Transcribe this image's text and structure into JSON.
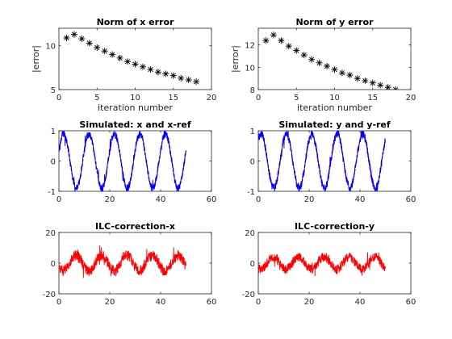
{
  "chart_data": [
    {
      "id": "p1",
      "type": "scatter",
      "title": "Norm of x error",
      "xlabel": "iteration number",
      "ylabel": "|error|",
      "xlim": [
        0,
        20
      ],
      "ylim": [
        5,
        12
      ],
      "xticks": [
        0,
        5,
        10,
        15,
        20
      ],
      "yticks": [
        5,
        10
      ],
      "xtick_labels": [
        "0",
        "5",
        "10",
        "15",
        "20"
      ],
      "ytick_labels": [
        "5",
        "10"
      ],
      "marker": "*",
      "color": "#000000",
      "series": [
        {
          "x": [
            1,
            2,
            3,
            4,
            5,
            6,
            7,
            8,
            9,
            10,
            11,
            12,
            13,
            14,
            15,
            16,
            17,
            18
          ],
          "y": [
            10.9,
            11.3,
            10.8,
            10.3,
            9.8,
            9.4,
            9.0,
            8.6,
            8.2,
            7.9,
            7.6,
            7.3,
            7.0,
            6.8,
            6.6,
            6.3,
            6.1,
            5.9
          ]
        }
      ]
    },
    {
      "id": "p2",
      "type": "scatter",
      "title": "Norm of y error",
      "xlabel": "iteration number",
      "ylabel": "|error|",
      "xlim": [
        0,
        20
      ],
      "ylim": [
        8,
        13.5
      ],
      "xticks": [
        0,
        5,
        10,
        15,
        20
      ],
      "yticks": [
        8,
        10,
        12
      ],
      "xtick_labels": [
        "0",
        "5",
        "10",
        "15",
        "20"
      ],
      "ytick_labels": [
        "8",
        "10",
        "12"
      ],
      "marker": "*",
      "color": "#000000",
      "series": [
        {
          "x": [
            1,
            2,
            3,
            4,
            5,
            6,
            7,
            8,
            9,
            10,
            11,
            12,
            13,
            14,
            15,
            16,
            17,
            18
          ],
          "y": [
            12.4,
            12.9,
            12.4,
            11.9,
            11.5,
            11.1,
            10.7,
            10.4,
            10.1,
            9.8,
            9.5,
            9.3,
            9.0,
            8.8,
            8.6,
            8.4,
            8.2,
            8.0
          ]
        }
      ]
    },
    {
      "id": "p3",
      "type": "line",
      "title": "Simulated: x and x-ref",
      "xlabel": "",
      "ylabel": "",
      "xlim": [
        0,
        60
      ],
      "ylim": [
        -1,
        1
      ],
      "xticks": [
        0,
        20,
        40,
        60
      ],
      "yticks": [
        -1,
        0,
        1
      ],
      "xtick_labels": [
        "0",
        "20",
        "40",
        "60"
      ],
      "ytick_labels": [
        "-1",
        "0",
        "1"
      ],
      "series": [
        {
          "kind": "sine",
          "t0": 0,
          "t1": 50,
          "amplitude": 0.9,
          "period": 10,
          "phase": 0.4,
          "noise": 0.0,
          "color": "#ff0000",
          "dashed": true
        },
        {
          "kind": "sine",
          "t0": 0,
          "t1": 50,
          "amplitude": 0.9,
          "period": 10,
          "phase": 0.4,
          "noise": 0.13,
          "color": "#0000ff",
          "dashed": false
        }
      ]
    },
    {
      "id": "p4",
      "type": "line",
      "title": "Simulated: y and y-ref",
      "xlabel": "",
      "ylabel": "",
      "xlim": [
        0,
        60
      ],
      "ylim": [
        -1,
        1
      ],
      "xticks": [
        0,
        20,
        40,
        60
      ],
      "yticks": [
        -1,
        0,
        1
      ],
      "xtick_labels": [
        "0",
        "20",
        "40",
        "60"
      ],
      "ytick_labels": [
        "-1",
        "0",
        "1"
      ],
      "series": [
        {
          "kind": "sine",
          "t0": 0,
          "t1": 50,
          "amplitude": 0.9,
          "period": 10,
          "phase": 0.9,
          "noise": 0.0,
          "color": "#ff0000",
          "dashed": true
        },
        {
          "kind": "sine",
          "t0": 0,
          "t1": 50,
          "amplitude": 0.9,
          "period": 10,
          "phase": 0.9,
          "noise": 0.14,
          "color": "#0000ff",
          "dashed": false
        }
      ]
    },
    {
      "id": "p5",
      "type": "line",
      "title": "ILC-correction-x",
      "xlabel": "",
      "ylabel": "",
      "xlim": [
        0,
        60
      ],
      "ylim": [
        -20,
        20
      ],
      "xticks": [
        0,
        20,
        40,
        60
      ],
      "yticks": [
        -20,
        0,
        20
      ],
      "xtick_labels": [
        "0",
        "20",
        "40",
        "60"
      ],
      "ytick_labels": [
        "-20",
        "0",
        "20"
      ],
      "series": [
        {
          "kind": "sine",
          "t0": 0,
          "t1": 50,
          "amplitude": 5,
          "period": 10,
          "phase": 3.6,
          "noise": 3.5,
          "color": "#ff0000",
          "dashed": false
        }
      ]
    },
    {
      "id": "p6",
      "type": "line",
      "title": "ILC-correction-y",
      "xlabel": "",
      "ylabel": "",
      "xlim": [
        0,
        60
      ],
      "ylim": [
        -20,
        20
      ],
      "xticks": [
        0,
        20,
        40,
        60
      ],
      "yticks": [
        -20,
        0,
        20
      ],
      "xtick_labels": [
        "0",
        "20",
        "40",
        "60"
      ],
      "ytick_labels": [
        "-20",
        "0",
        "20"
      ],
      "series": [
        {
          "kind": "sine",
          "t0": 0,
          "t1": 50,
          "amplitude": 4,
          "period": 10,
          "phase": 4.2,
          "noise": 3.0,
          "color": "#ff0000",
          "dashed": false
        }
      ]
    }
  ]
}
